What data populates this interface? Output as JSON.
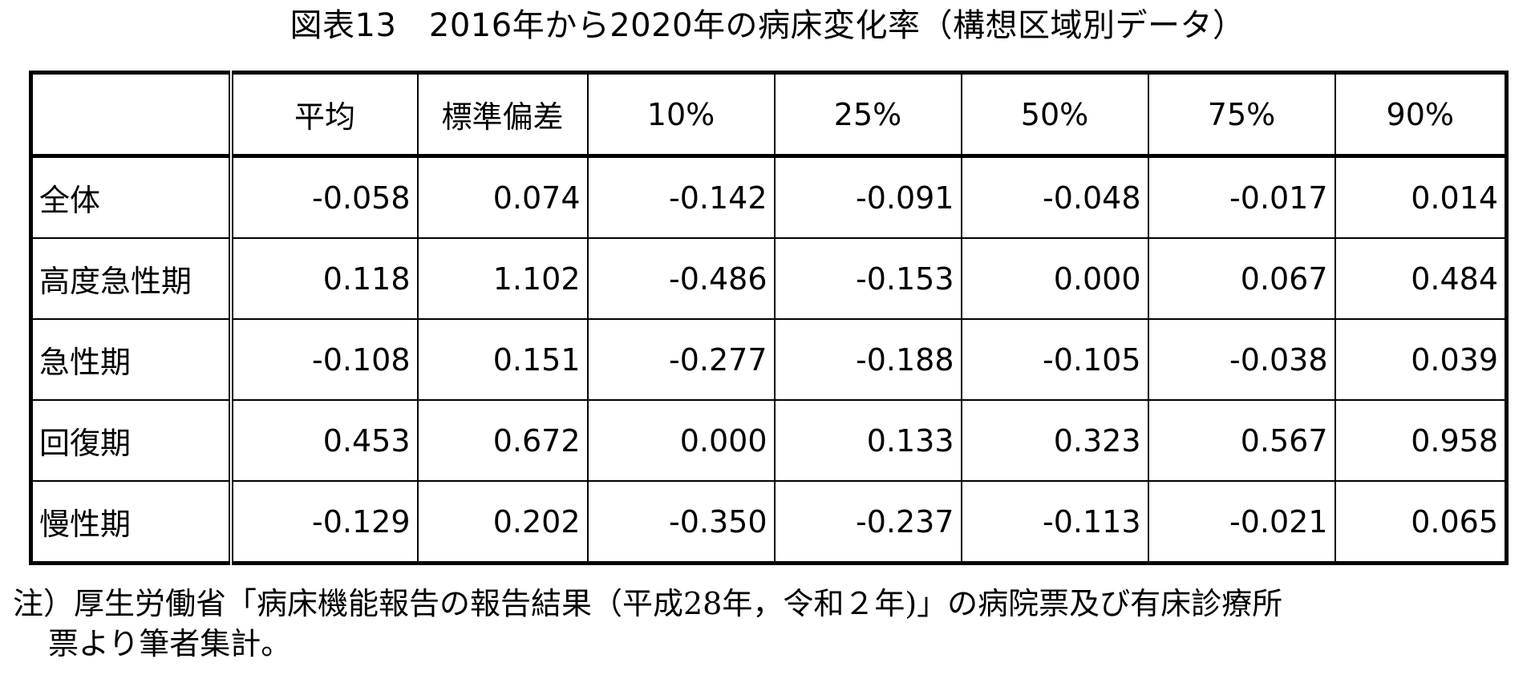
{
  "title": "図表13　2016年から2020年の病床変化率（構想区域別データ）",
  "table": {
    "corner": "",
    "columns": [
      "平均",
      "標準偏差",
      "10%",
      "25%",
      "50%",
      "75%",
      "90%"
    ],
    "rows": [
      {
        "label": "全体",
        "values": [
          "-0.058",
          "0.074",
          "-0.142",
          "-0.091",
          "-0.048",
          "-0.017",
          "0.014"
        ]
      },
      {
        "label": "高度急性期",
        "values": [
          "0.118",
          "1.102",
          "-0.486",
          "-0.153",
          "0.000",
          "0.067",
          "0.484"
        ]
      },
      {
        "label": "急性期",
        "values": [
          "-0.108",
          "0.151",
          "-0.277",
          "-0.188",
          "-0.105",
          "-0.038",
          "0.039"
        ]
      },
      {
        "label": "回復期",
        "values": [
          "0.453",
          "0.672",
          "0.000",
          "0.133",
          "0.323",
          "0.567",
          "0.958"
        ]
      },
      {
        "label": "慢性期",
        "values": [
          "-0.129",
          "0.202",
          "-0.350",
          "-0.237",
          "-0.113",
          "-0.021",
          "0.065"
        ]
      }
    ]
  },
  "note": {
    "line1": "注）厚生労働省「病床機能報告の報告結果（平成28年，令和２年)」の病院票及び有床診療所",
    "line2": "票より筆者集計。"
  }
}
